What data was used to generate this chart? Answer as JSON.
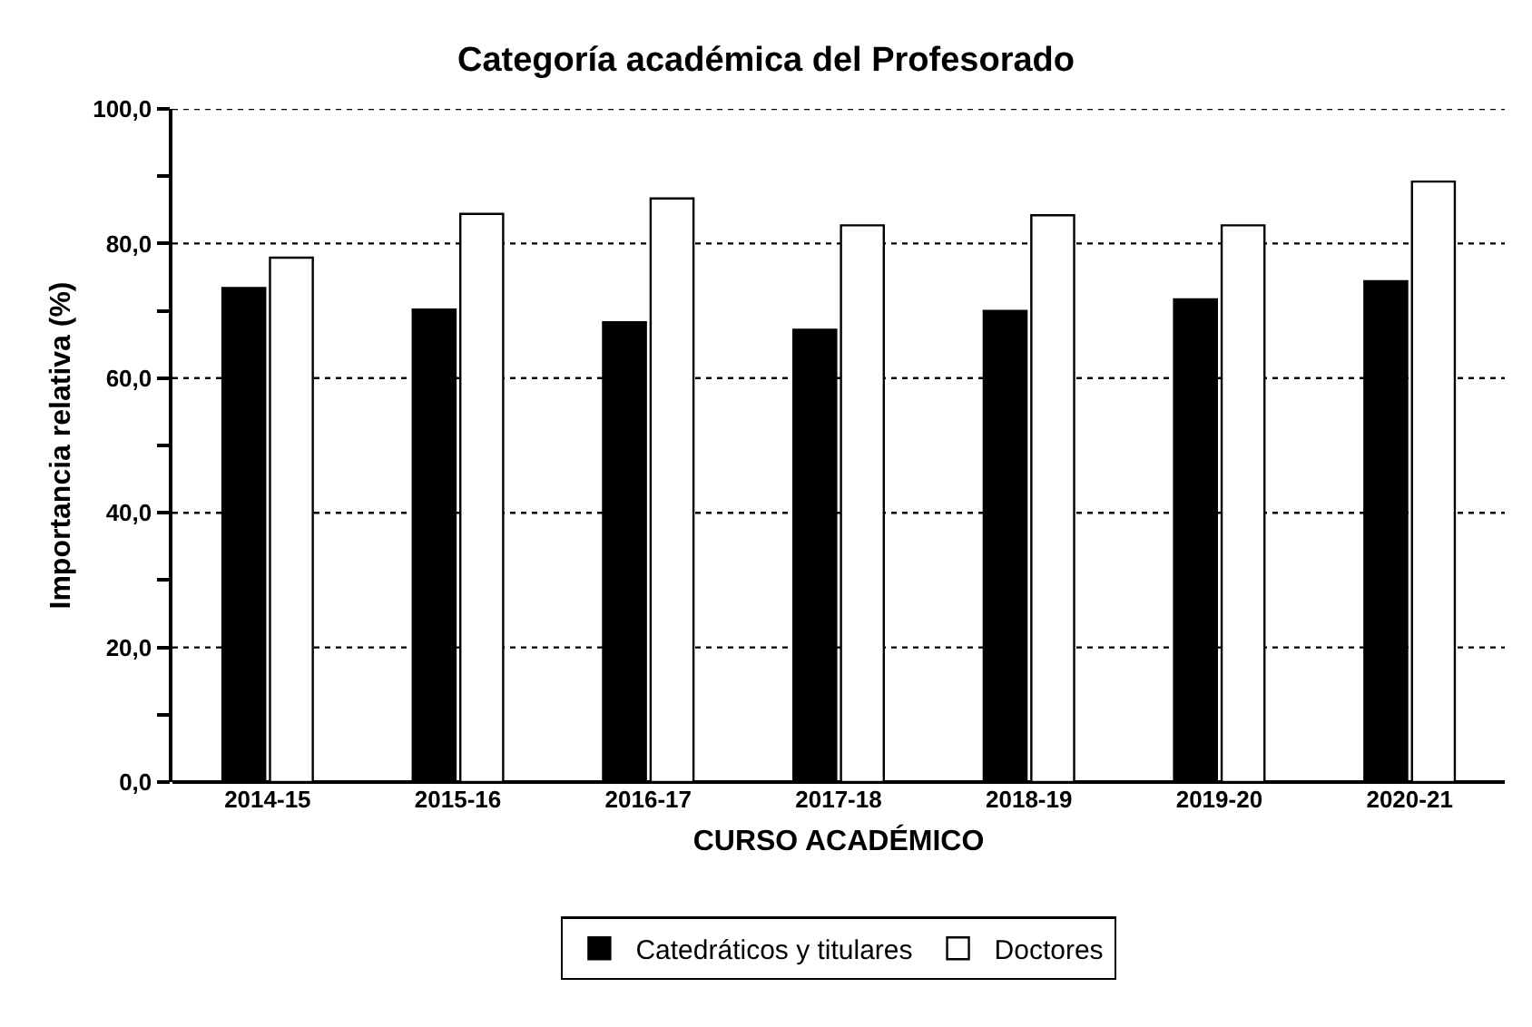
{
  "chart_data": {
    "type": "bar",
    "title": "Categoría académica del Profesorado",
    "xlabel": "CURSO ACADÉMICO",
    "ylabel": "Importancia relativa (%)",
    "categories": [
      "2014-15",
      "2015-16",
      "2016-17",
      "2017-18",
      "2018-19",
      "2019-20",
      "2020-21"
    ],
    "series": [
      {
        "name": "Catedráticos y titulares",
        "color": "#000000",
        "values": [
          73.4,
          70.2,
          68.3,
          67.2,
          70.0,
          71.7,
          74.4
        ]
      },
      {
        "name": "Doctores",
        "color": "#ffffff",
        "values": [
          77.9,
          84.4,
          86.7,
          82.7,
          84.2,
          82.7,
          89.2
        ]
      }
    ],
    "ylim": [
      0,
      100
    ],
    "yticks": [
      {
        "value": 0,
        "label": "0,0"
      },
      {
        "value": 10,
        "label": null
      },
      {
        "value": 20,
        "label": "20,0"
      },
      {
        "value": 30,
        "label": null
      },
      {
        "value": 40,
        "label": "40,0"
      },
      {
        "value": 50,
        "label": null
      },
      {
        "value": 60,
        "label": "60,0"
      },
      {
        "value": 70,
        "label": null
      },
      {
        "value": 80,
        "label": "80,0"
      },
      {
        "value": 90,
        "label": null
      },
      {
        "value": 100,
        "label": "100,0"
      }
    ],
    "grid": "y",
    "legend": "bottom"
  }
}
